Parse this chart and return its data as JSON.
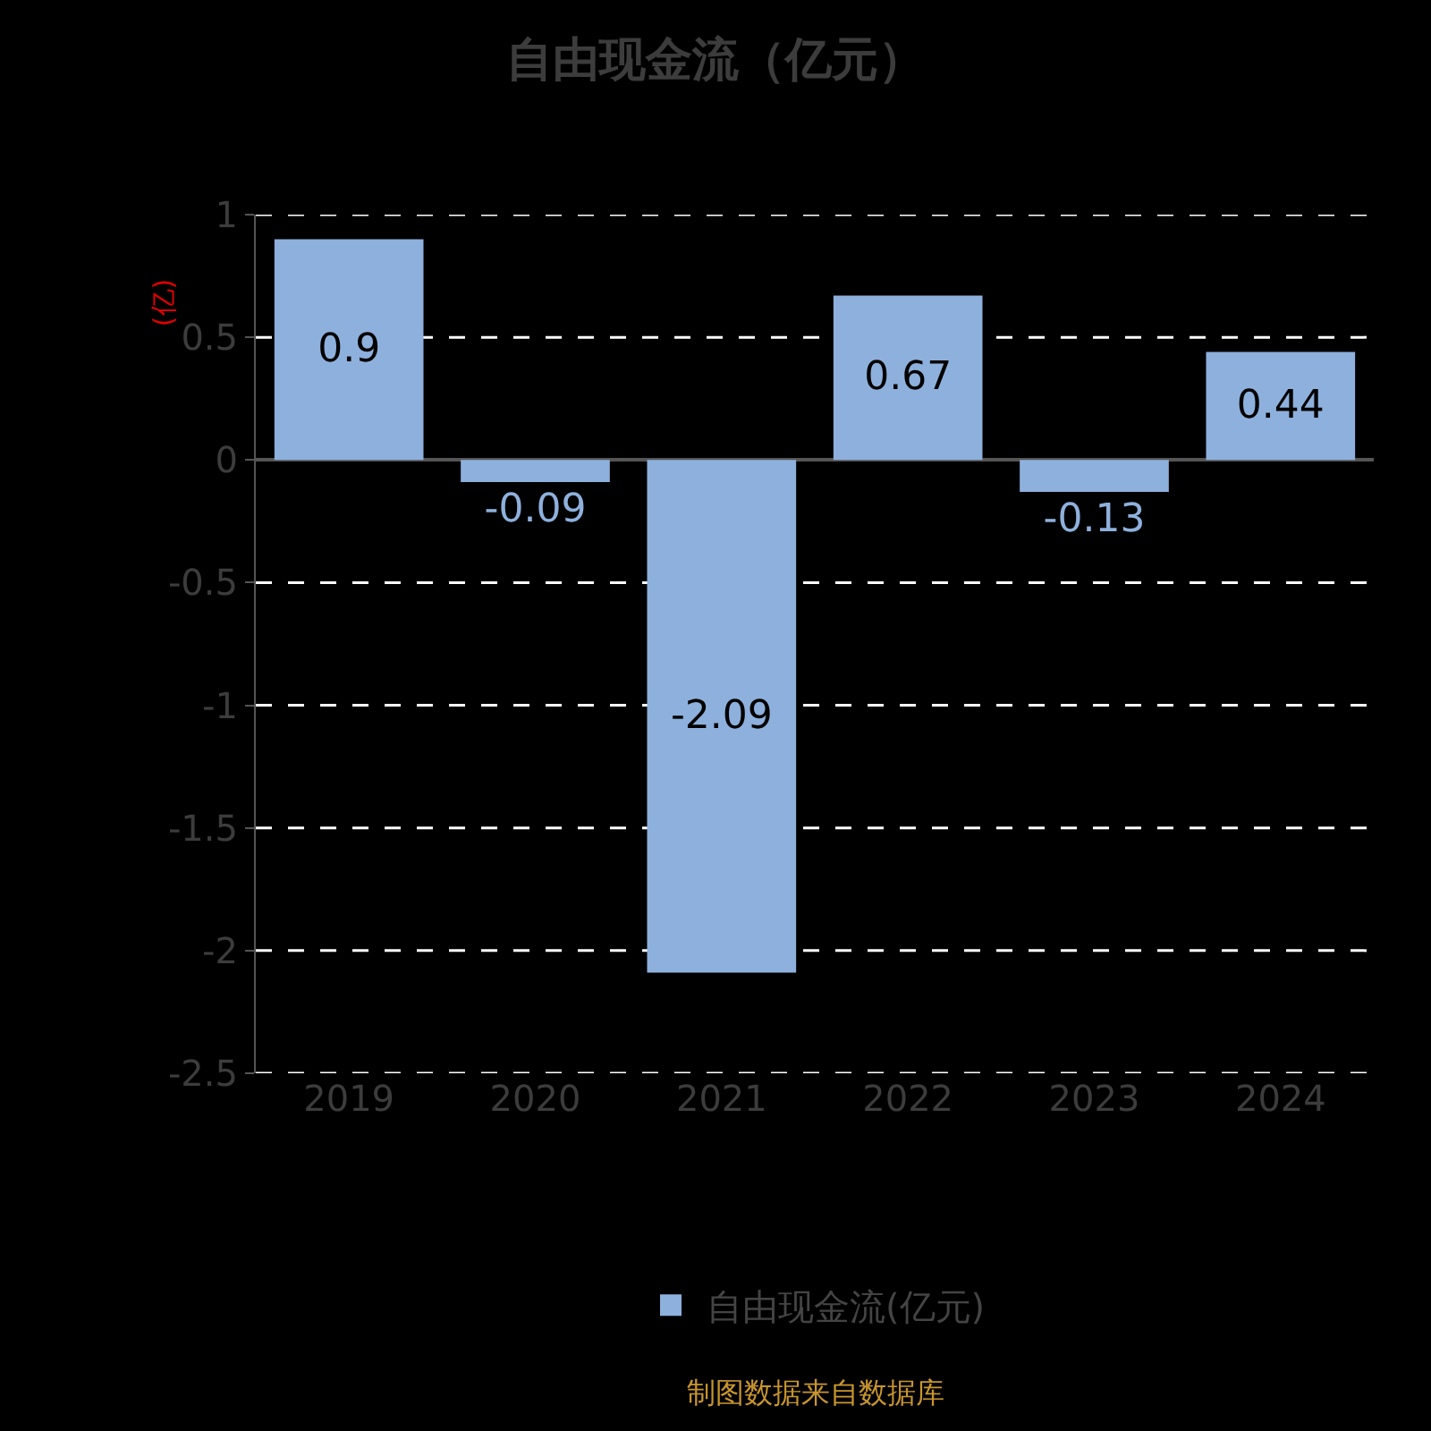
{
  "chart_data": {
    "type": "bar",
    "title": "自由现金流（亿元）",
    "ylabel": "(亿)",
    "categories": [
      "2019",
      "2020",
      "2021",
      "2022",
      "2023",
      "2024"
    ],
    "series": [
      {
        "name": "自由现金流(亿元)",
        "color": "#8eb0dc",
        "values": [
          0.9,
          -0.09,
          -2.09,
          0.67,
          -0.13,
          0.44
        ]
      }
    ],
    "ylim": [
      -2.5,
      1
    ],
    "yticks": [
      -2.5,
      -2,
      -1.5,
      -1,
      -0.5,
      0,
      0.5,
      1
    ],
    "grid": "y",
    "legend": "bottom",
    "data_labels": true,
    "annotations": [
      "制图数据来自数据库"
    ]
  }
}
